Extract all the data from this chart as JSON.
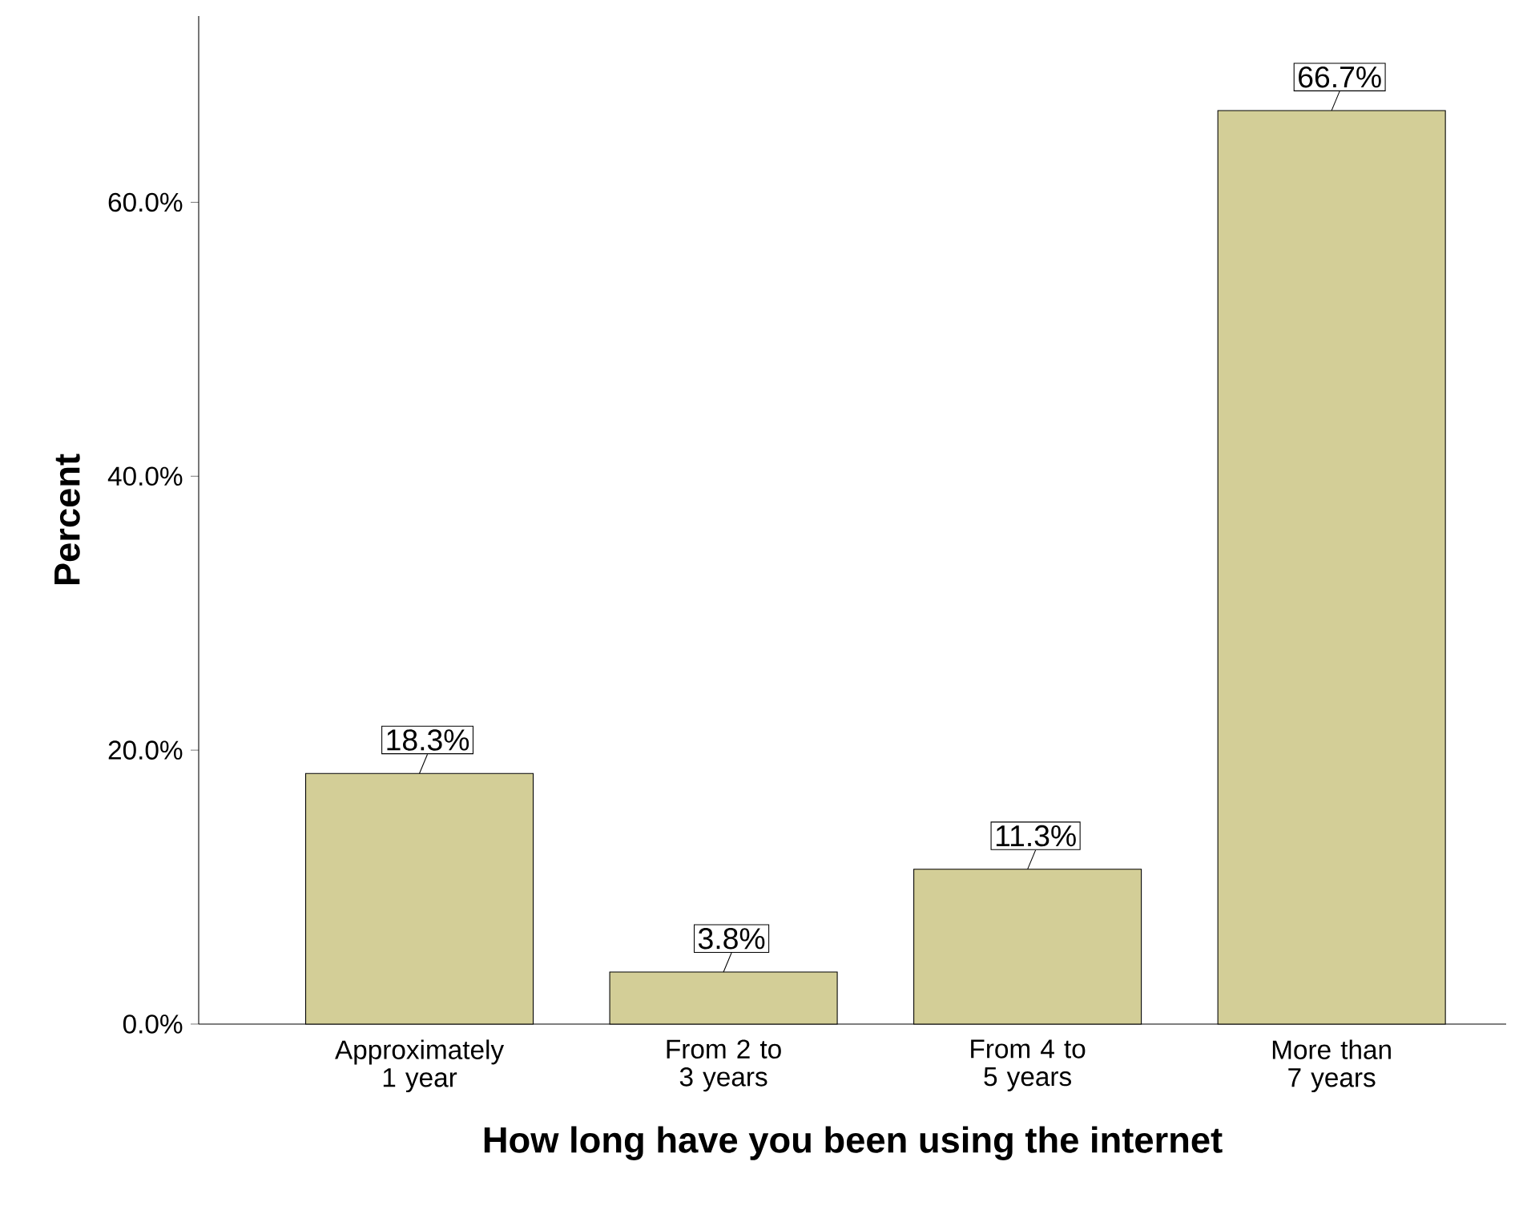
{
  "chart_data": {
    "type": "bar",
    "xlabel": "How long have you been using the internet",
    "ylabel": "Percent",
    "categories": [
      "Approximately 1 year",
      "From 2 to 3 years",
      "From 4 to 5 years",
      "More than 7 years"
    ],
    "values": [
      18.3,
      3.8,
      11.3,
      66.7
    ],
    "color": "#d3ce97",
    "value_labels": [
      "18.3%",
      "3.8%",
      "11.3%",
      "66.7%"
    ],
    "ylim": [
      0,
      73.6
    ],
    "yticks": [
      {
        "value": 0,
        "label": "0.0%"
      },
      {
        "value": 20,
        "label": "20.0%"
      },
      {
        "value": 40,
        "label": "40.0%"
      },
      {
        "value": 60,
        "label": "60.0%"
      }
    ]
  }
}
